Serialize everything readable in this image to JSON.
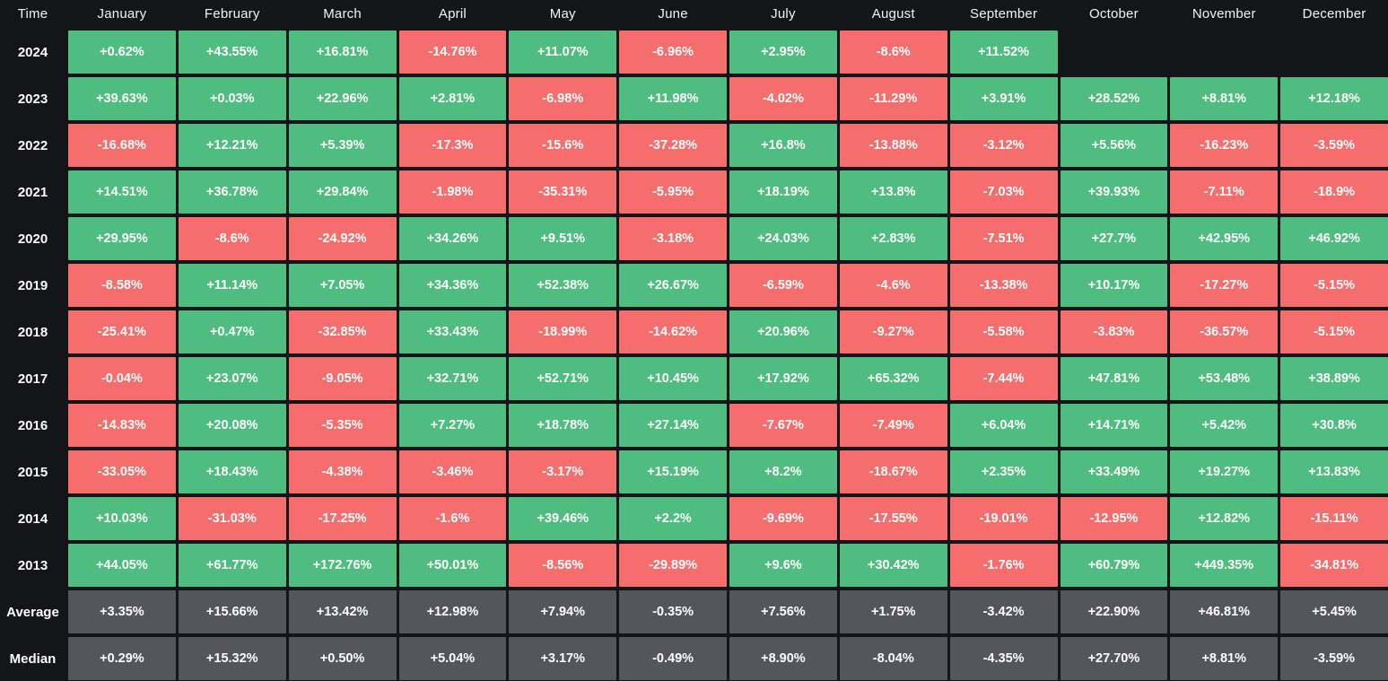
{
  "colors": {
    "background": "#141519",
    "positive": "#4ebd7f",
    "negative": "#f56d6d",
    "neutral": "#54565c",
    "cell_text": "#ffffff",
    "header_text": "#f2f3f5"
  },
  "chart_data": {
    "type": "heatmap",
    "title": "",
    "columns": [
      "Time",
      "January",
      "February",
      "March",
      "April",
      "May",
      "June",
      "July",
      "August",
      "September",
      "October",
      "November",
      "December"
    ],
    "rows": [
      {
        "label": "2024",
        "neutral": false,
        "values": [
          "+0.62%",
          "+43.55%",
          "+16.81%",
          "-14.76%",
          "+11.07%",
          "-6.96%",
          "+2.95%",
          "-8.6%",
          "+11.52%",
          null,
          null,
          null
        ]
      },
      {
        "label": "2023",
        "neutral": false,
        "values": [
          "+39.63%",
          "+0.03%",
          "+22.96%",
          "+2.81%",
          "-6.98%",
          "+11.98%",
          "-4.02%",
          "-11.29%",
          "+3.91%",
          "+28.52%",
          "+8.81%",
          "+12.18%"
        ]
      },
      {
        "label": "2022",
        "neutral": false,
        "values": [
          "-16.68%",
          "+12.21%",
          "+5.39%",
          "-17.3%",
          "-15.6%",
          "-37.28%",
          "+16.8%",
          "-13.88%",
          "-3.12%",
          "+5.56%",
          "-16.23%",
          "-3.59%"
        ]
      },
      {
        "label": "2021",
        "neutral": false,
        "values": [
          "+14.51%",
          "+36.78%",
          "+29.84%",
          "-1.98%",
          "-35.31%",
          "-5.95%",
          "+18.19%",
          "+13.8%",
          "-7.03%",
          "+39.93%",
          "-7.11%",
          "-18.9%"
        ]
      },
      {
        "label": "2020",
        "neutral": false,
        "values": [
          "+29.95%",
          "-8.6%",
          "-24.92%",
          "+34.26%",
          "+9.51%",
          "-3.18%",
          "+24.03%",
          "+2.83%",
          "-7.51%",
          "+27.7%",
          "+42.95%",
          "+46.92%"
        ]
      },
      {
        "label": "2019",
        "neutral": false,
        "values": [
          "-8.58%",
          "+11.14%",
          "+7.05%",
          "+34.36%",
          "+52.38%",
          "+26.67%",
          "-6.59%",
          "-4.6%",
          "-13.38%",
          "+10.17%",
          "-17.27%",
          "-5.15%"
        ]
      },
      {
        "label": "2018",
        "neutral": false,
        "values": [
          "-25.41%",
          "+0.47%",
          "-32.85%",
          "+33.43%",
          "-18.99%",
          "-14.62%",
          "+20.96%",
          "-9.27%",
          "-5.58%",
          "-3.83%",
          "-36.57%",
          "-5.15%"
        ]
      },
      {
        "label": "2017",
        "neutral": false,
        "values": [
          "-0.04%",
          "+23.07%",
          "-9.05%",
          "+32.71%",
          "+52.71%",
          "+10.45%",
          "+17.92%",
          "+65.32%",
          "-7.44%",
          "+47.81%",
          "+53.48%",
          "+38.89%"
        ]
      },
      {
        "label": "2016",
        "neutral": false,
        "values": [
          "-14.83%",
          "+20.08%",
          "-5.35%",
          "+7.27%",
          "+18.78%",
          "+27.14%",
          "-7.67%",
          "-7.49%",
          "+6.04%",
          "+14.71%",
          "+5.42%",
          "+30.8%"
        ]
      },
      {
        "label": "2015",
        "neutral": false,
        "values": [
          "-33.05%",
          "+18.43%",
          "-4.38%",
          "-3.46%",
          "-3.17%",
          "+15.19%",
          "+8.2%",
          "-18.67%",
          "+2.35%",
          "+33.49%",
          "+19.27%",
          "+13.83%"
        ]
      },
      {
        "label": "2014",
        "neutral": false,
        "values": [
          "+10.03%",
          "-31.03%",
          "-17.25%",
          "-1.6%",
          "+39.46%",
          "+2.2%",
          "-9.69%",
          "-17.55%",
          "-19.01%",
          "-12.95%",
          "+12.82%",
          "-15.11%"
        ]
      },
      {
        "label": "2013",
        "neutral": false,
        "values": [
          "+44.05%",
          "+61.77%",
          "+172.76%",
          "+50.01%",
          "-8.56%",
          "-29.89%",
          "+9.6%",
          "+30.42%",
          "-1.76%",
          "+60.79%",
          "+449.35%",
          "-34.81%"
        ]
      },
      {
        "label": "Average",
        "neutral": true,
        "values": [
          "+3.35%",
          "+15.66%",
          "+13.42%",
          "+12.98%",
          "+7.94%",
          "-0.35%",
          "+7.56%",
          "+1.75%",
          "-3.42%",
          "+22.90%",
          "+46.81%",
          "+5.45%"
        ]
      },
      {
        "label": "Median",
        "neutral": true,
        "values": [
          "+0.29%",
          "+15.32%",
          "+0.50%",
          "+5.04%",
          "+3.17%",
          "-0.49%",
          "+8.90%",
          "-8.04%",
          "-4.35%",
          "+27.70%",
          "+8.81%",
          "-3.59%"
        ]
      }
    ]
  }
}
